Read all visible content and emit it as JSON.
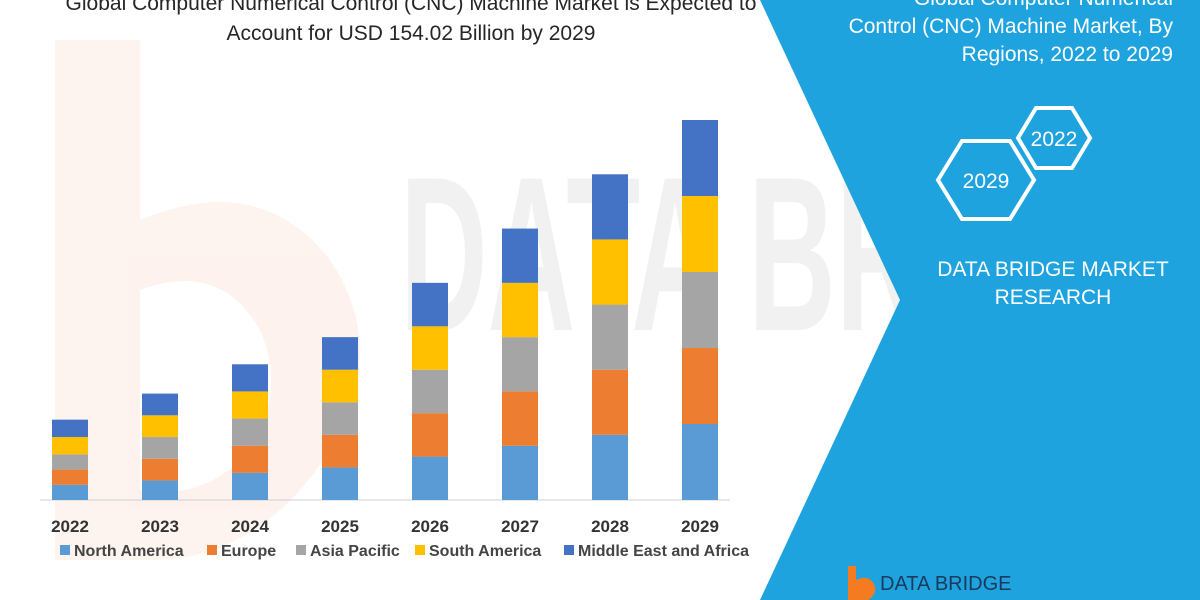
{
  "left_title": {
    "line1": "Global Computer Numerical Control (CNC) Machine Market is Expected to",
    "line2": "Account for USD 154.02 Billion by 2029"
  },
  "right_panel": {
    "title_line1": "Global Computer Numerical",
    "title_line2": "Control (CNC) Machine Market, By",
    "title_line3": "Regions, 2022 to 2029",
    "hex_back": "2022",
    "hex_front": "2029",
    "brand_line1": "DATA BRIDGE MARKET",
    "brand_line2": "RESEARCH",
    "bg_color": "#1ea3df"
  },
  "watermark": {
    "text": "DATA BRIDGE",
    "logo_text": "DATA BRIDGE"
  },
  "chart_data": {
    "type": "bar",
    "stacked": true,
    "categories": [
      "2022",
      "2023",
      "2024",
      "2025",
      "2026",
      "2027",
      "2028",
      "2029"
    ],
    "series": [
      {
        "name": "North America",
        "color": "#5b9bd5",
        "values": [
          14,
          18,
          25,
          30,
          40,
          50,
          60,
          70
        ]
      },
      {
        "name": "Europe",
        "color": "#ed7d31",
        "values": [
          14,
          20,
          25,
          30,
          40,
          50,
          60,
          70
        ]
      },
      {
        "name": "Asia Pacific",
        "color": "#a5a5a5",
        "values": [
          14,
          20,
          25,
          30,
          40,
          50,
          60,
          70
        ]
      },
      {
        "name": "South America",
        "color": "#ffc000",
        "values": [
          16,
          20,
          25,
          30,
          40,
          50,
          60,
          70
        ]
      },
      {
        "name": "Middle East and Africa",
        "color": "#4472c4",
        "values": [
          16,
          20,
          25,
          30,
          40,
          50,
          60,
          70
        ]
      }
    ],
    "ylim": [
      0,
      350
    ],
    "grid": false,
    "legend_position": "bottom"
  }
}
